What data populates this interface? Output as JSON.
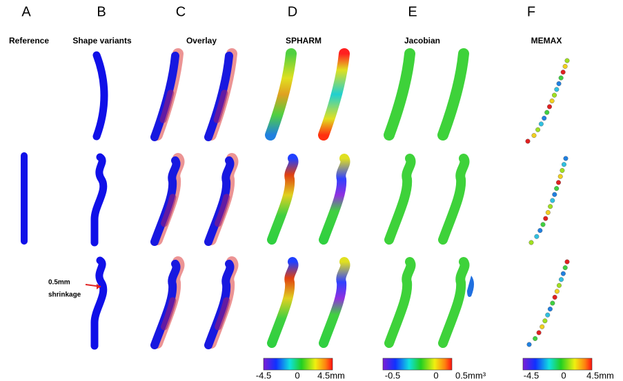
{
  "panels": [
    {
      "letter": "A",
      "title": "Reference"
    },
    {
      "letter": "B",
      "title": "Shape variants"
    },
    {
      "letter": "C",
      "title": "Overlay"
    },
    {
      "letter": "D",
      "title": "SPHARM"
    },
    {
      "letter": "E",
      "title": "Jacobian"
    },
    {
      "letter": "F",
      "title": "MEMAX"
    }
  ],
  "annotation": [
    "0.5mm",
    "shrinkage"
  ],
  "colorbars": [
    {
      "labels": [
        "-4.5",
        "0",
        "4.5mm"
      ]
    },
    {
      "labels": [
        "-0.5",
        "0",
        "0.5mm³"
      ]
    },
    {
      "labels": [
        "-4.5",
        "0",
        "4.5mm"
      ]
    }
  ]
}
